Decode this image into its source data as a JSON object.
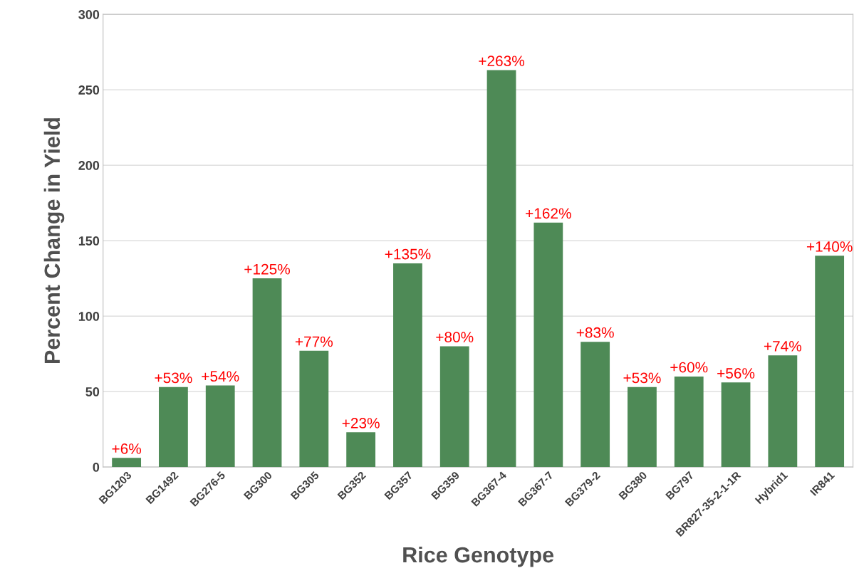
{
  "chart_data": {
    "type": "bar",
    "xlabel": "Rice Genotype",
    "ylabel": "Percent Change in Yield",
    "categories": [
      "BG1203",
      "BG1492",
      "BG276-5",
      "BG300",
      "BG305",
      "BG352",
      "BG357",
      "BG359",
      "BG367-4",
      "BG367-7",
      "BG379-2",
      "BG380",
      "BG797",
      "BR827-35-2-1-1R",
      "Hybrid1",
      "IR841"
    ],
    "values": [
      6,
      53,
      54,
      125,
      77,
      23,
      135,
      80,
      263,
      162,
      83,
      53,
      60,
      56,
      74,
      140
    ],
    "value_labels": [
      "+6%",
      "+53%",
      "+54%",
      "+125%",
      "+77%",
      "+23%",
      "+135%",
      "+80%",
      "+263%",
      "+162%",
      "+83%",
      "+53%",
      "+60%",
      "+56%",
      "+74%",
      "+140%"
    ],
    "color": "#4e8a56",
    "ylim": [
      0,
      300
    ],
    "yticks": [
      0,
      50,
      100,
      150,
      200,
      250,
      300
    ],
    "grid": "y"
  }
}
